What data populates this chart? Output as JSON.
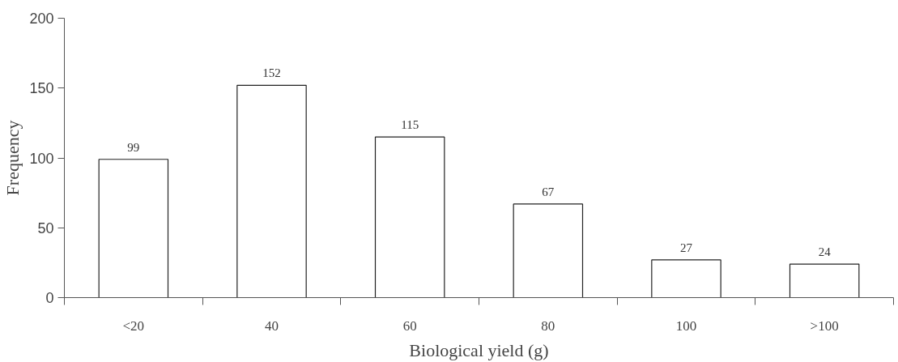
{
  "chart_data": {
    "type": "bar",
    "xlabel": "Biological yield (g)",
    "ylabel": "Frequency",
    "categories": [
      "<20",
      "40",
      "60",
      "80",
      "100",
      ">100"
    ],
    "values": [
      99,
      152,
      115,
      67,
      27,
      24
    ],
    "color": "#ffffff",
    "ylim": [
      0,
      200
    ],
    "yticks": [
      0,
      50,
      100,
      150,
      200
    ],
    "grid": false,
    "data_labels": true
  }
}
